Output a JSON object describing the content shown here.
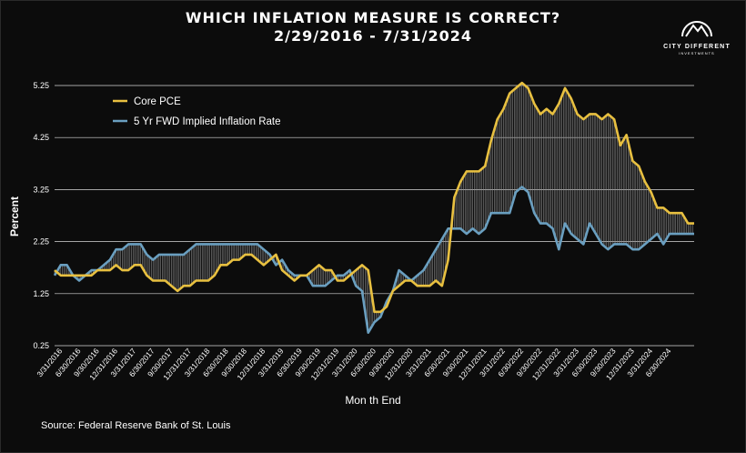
{
  "title": "WHICH INFLATION MEASURE IS CORRECT?",
  "subtitle": "2/29/2016 - 7/31/2024",
  "source": "Source: Federal Reserve Bank of St. Louis",
  "logo": {
    "name": "CITY DIFFERENT",
    "sub": "INVESTMENTS",
    "icon": "mountain-sun-icon"
  },
  "colors": {
    "background": "#0c0c0c",
    "core_pce": "#e8c040",
    "fwd_inflation": "#6a9fc0",
    "gap_hatch": "#8a8a8a",
    "grid": "#d8d8d8"
  },
  "chart_data": {
    "type": "line",
    "title": "WHICH INFLATION MEASURE IS CORRECT?",
    "subtitle": "2/29/2016 - 7/31/2024",
    "xlabel": "Mon th End",
    "ylabel": "Percent",
    "ylim": [
      0.25,
      5.25
    ],
    "yticks": [
      0.25,
      1.25,
      2.25,
      3.25,
      4.25,
      5.25
    ],
    "ytick_labels": [
      "0.25",
      "1.25",
      "2.25",
      "3.25",
      "4.25",
      "5.25"
    ],
    "grid": "horizontal",
    "legend_position": "top-left",
    "gap_fill": "vertical hatch lines between series",
    "x_start": "2/29/2016",
    "x_end": "7/31/2024",
    "x_tick_labels": [
      "3/31/2016",
      "6/30/2016",
      "9/30/2016",
      "12/31/2016",
      "3/31/2017",
      "6/30/2017",
      "9/30/2017",
      "12/31/2017",
      "3/31/2018",
      "6/30/2018",
      "9/30/2018",
      "12/31/2018",
      "3/31/2019",
      "6/30/2019",
      "9/30/2019",
      "12/31/2019",
      "3/31/2020",
      "6/30/2020",
      "9/30/2020",
      "12/31/2020",
      "3/31/2021",
      "6/30/2021",
      "9/30/2021",
      "12/31/2021",
      "3/31/2022",
      "6/30/2022",
      "9/30/2022",
      "12/31/2022",
      "3/31/2023",
      "6/30/2023",
      "9/30/2023",
      "12/31/2023",
      "3/31/2024",
      "6/30/2024"
    ],
    "series": [
      {
        "name": "Core PCE",
        "color": "#e8c040",
        "values": [
          1.7,
          1.6,
          1.6,
          1.6,
          1.6,
          1.6,
          1.6,
          1.7,
          1.7,
          1.7,
          1.8,
          1.7,
          1.7,
          1.8,
          1.8,
          1.6,
          1.5,
          1.5,
          1.5,
          1.4,
          1.3,
          1.4,
          1.4,
          1.5,
          1.5,
          1.5,
          1.6,
          1.8,
          1.8,
          1.9,
          1.9,
          2.0,
          2.0,
          1.9,
          1.8,
          1.9,
          2.0,
          1.7,
          1.6,
          1.5,
          1.6,
          1.6,
          1.7,
          1.8,
          1.7,
          1.7,
          1.5,
          1.5,
          1.6,
          1.7,
          1.8,
          1.7,
          0.9,
          0.9,
          1.0,
          1.3,
          1.4,
          1.5,
          1.5,
          1.4,
          1.4,
          1.4,
          1.5,
          1.4,
          1.9,
          3.1,
          3.4,
          3.6,
          3.6,
          3.6,
          3.7,
          4.2,
          4.6,
          4.8,
          5.1,
          5.2,
          5.3,
          5.2,
          4.9,
          4.7,
          4.8,
          4.7,
          4.9,
          5.2,
          5.0,
          4.7,
          4.6,
          4.7,
          4.7,
          4.6,
          4.7,
          4.6,
          4.1,
          4.3,
          3.8,
          3.7,
          3.4,
          3.2,
          2.9,
          2.9,
          2.8,
          2.8,
          2.8,
          2.6,
          2.6
        ]
      },
      {
        "name": "5 Yr FWD Implied Inflation Rate",
        "color": "#6a9fc0",
        "values": [
          1.6,
          1.8,
          1.8,
          1.6,
          1.5,
          1.6,
          1.7,
          1.7,
          1.8,
          1.9,
          2.1,
          2.1,
          2.2,
          2.2,
          2.2,
          2.0,
          1.9,
          2.0,
          2.0,
          2.0,
          2.0,
          2.0,
          2.1,
          2.2,
          2.2,
          2.2,
          2.2,
          2.2,
          2.2,
          2.2,
          2.2,
          2.2,
          2.2,
          2.2,
          2.1,
          2.0,
          1.8,
          1.9,
          1.7,
          1.6,
          1.6,
          1.6,
          1.4,
          1.4,
          1.4,
          1.5,
          1.6,
          1.6,
          1.7,
          1.4,
          1.3,
          0.5,
          0.7,
          0.8,
          1.1,
          1.3,
          1.7,
          1.6,
          1.5,
          1.6,
          1.7,
          1.9,
          2.1,
          2.3,
          2.5,
          2.5,
          2.5,
          2.4,
          2.5,
          2.4,
          2.5,
          2.8,
          2.8,
          2.8,
          2.8,
          3.2,
          3.3,
          3.2,
          2.8,
          2.6,
          2.6,
          2.5,
          2.1,
          2.6,
          2.4,
          2.3,
          2.2,
          2.6,
          2.4,
          2.2,
          2.1,
          2.2,
          2.2,
          2.2,
          2.1,
          2.1,
          2.2,
          2.3,
          2.4,
          2.2,
          2.4,
          2.4,
          2.4,
          2.4,
          2.4
        ]
      }
    ]
  }
}
